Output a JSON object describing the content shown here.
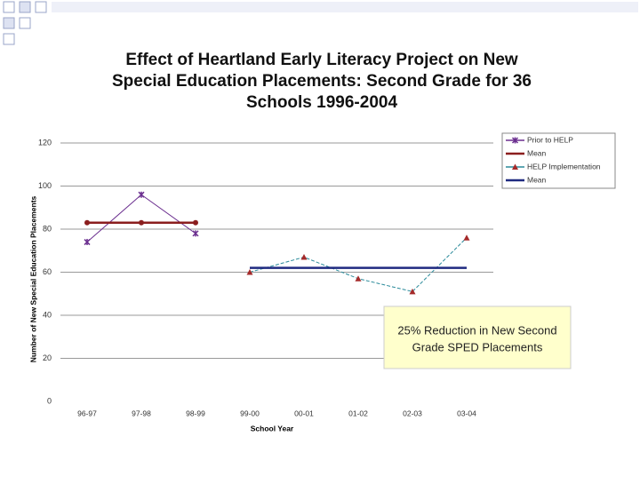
{
  "chart_data": {
    "type": "line",
    "title": [
      "Effect of Heartland Early Literacy Project on New",
      "Special Education Placements: Second Grade for 36",
      "Schools 1996-2004"
    ],
    "categories": [
      "96-97",
      "97-98",
      "98-99",
      "99-00",
      "00-01",
      "01-02",
      "02-03",
      "03-04"
    ],
    "series": [
      {
        "name": "Prior to HELP",
        "color": "#6b2f8f",
        "marker": "star",
        "dash": false,
        "values": [
          74,
          96,
          78,
          null,
          null,
          null,
          null,
          null
        ]
      },
      {
        "name": "Mean",
        "color": "#8b1e1e",
        "marker": "circle",
        "dash": false,
        "values": [
          83,
          83,
          83,
          null,
          null,
          null,
          null,
          null
        ]
      },
      {
        "name": "HELP Implementation",
        "color": "#2a8a9a",
        "marker": "triangle",
        "dash": true,
        "values": [
          null,
          null,
          null,
          60,
          67,
          57,
          51,
          76
        ]
      },
      {
        "name": "Mean",
        "color": "#1f2a80",
        "marker": "none",
        "dash": false,
        "values": [
          null,
          null,
          null,
          62,
          62,
          62,
          62,
          62
        ]
      }
    ],
    "ylim": [
      0,
      120
    ],
    "yticks": [
      0,
      20,
      40,
      60,
      80,
      100,
      120
    ],
    "grid": true,
    "ylabel": "Number of New Special Education Placements",
    "xlabel": "School Year",
    "legend": "top-right",
    "annotation": [
      "25% Reduction in New Second",
      "Grade SPED Placements"
    ]
  }
}
